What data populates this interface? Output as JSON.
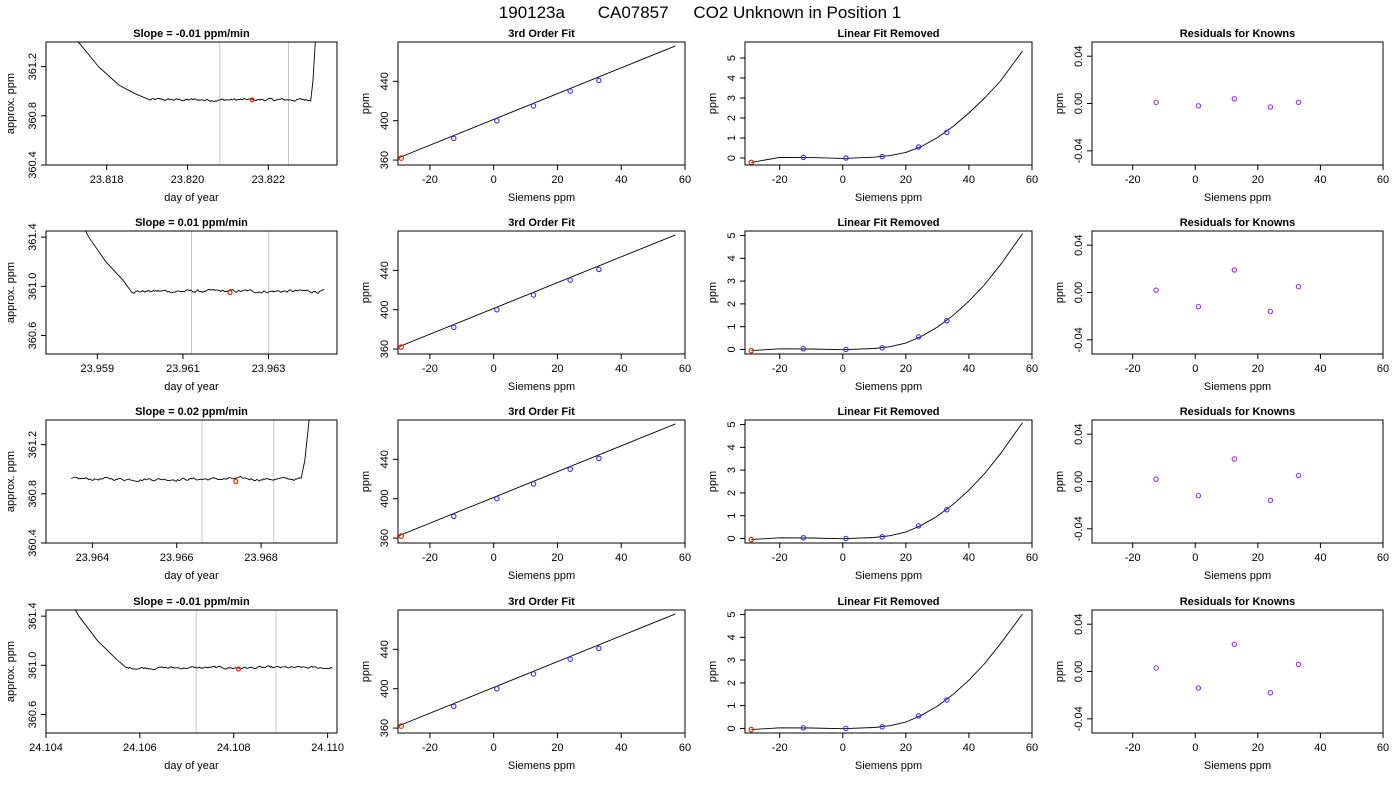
{
  "page": {
    "title_parts": [
      "190123a",
      "CA07857",
      "CO2 Unknown in Position  1"
    ]
  },
  "labels": {
    "fit_title": "3rd Order Fit",
    "lin_title": "Linear Fit Removed",
    "res_title": "Residuals for Knowns",
    "xlabel_time": "day of year",
    "ylabel_time": "approx. ppm",
    "xlabel_siemens": "Siemens ppm",
    "ylabel_ppm": "ppm"
  },
  "colors": {
    "line": "#000000",
    "vline": "#c8c8c8",
    "known_point": "#3333ff",
    "unknown_point": "#ff2200",
    "residual_point": "#9933ff"
  },
  "chart_data": [
    {
      "type": "line",
      "title": "Slope =  -0.01  ppm/min",
      "xlabel": "day of year",
      "ylabel": "approx. ppm",
      "xlim": [
        23.8165,
        23.8237
      ],
      "ylim": [
        360.4,
        361.4
      ],
      "xticks": [
        23.818,
        23.82,
        23.822
      ],
      "xtick_labels": [
        "23.818",
        "23.820",
        "23.822"
      ],
      "yticks": [
        360.4,
        360.8,
        361.2
      ],
      "ytick_labels": [
        "360.4",
        "360.8",
        "361.2"
      ],
      "x_range": [
        23.817,
        23.8232
      ],
      "trace": [
        [
          23.817,
          361.6
        ],
        [
          23.8173,
          361.4
        ],
        [
          23.8178,
          361.2
        ],
        [
          23.8183,
          361.05
        ],
        [
          23.8187,
          360.98
        ],
        [
          23.8192,
          360.93
        ],
        [
          23.8232,
          360.93
        ]
      ],
      "start": 23.81905,
      "baseline": 360.93,
      "noise": 0.01,
      "spike_start": 23.82305,
      "spike_end": 23.8232,
      "spike_top": 361.6,
      "vlines": [
        23.8208,
        23.8225
      ],
      "point": [
        23.8216,
        360.93
      ]
    },
    {
      "type": "scatter",
      "title": "3rd Order Fit",
      "xlabel": "Siemens ppm",
      "ylabel": "ppm",
      "xlim": [
        -30,
        60
      ],
      "ylim": [
        355,
        480
      ],
      "xticks": [
        -20,
        0,
        20,
        40,
        60
      ],
      "xtick_labels": [
        "-20",
        "0",
        "20",
        "40",
        "60"
      ],
      "yticks": [
        360,
        400,
        440
      ],
      "ytick_labels": [
        "360",
        "400",
        "440"
      ],
      "curve": [
        [
          -30,
          362
        ],
        [
          57,
          476
        ]
      ],
      "points": [
        [
          -12.5,
          382
        ],
        [
          1,
          400
        ],
        [
          12.5,
          415
        ],
        [
          24,
          430
        ],
        [
          33,
          441
        ]
      ],
      "unknown": [
        [
          -29,
          362
        ]
      ]
    },
    {
      "type": "scatter",
      "title": "Linear Fit Removed",
      "xlabel": "Siemens ppm",
      "ylabel": "ppm",
      "xlim": [
        -31,
        60
      ],
      "ylim": [
        -0.35,
        5.8
      ],
      "xticks": [
        -20,
        0,
        20,
        40,
        60
      ],
      "xtick_labels": [
        "-20",
        "0",
        "20",
        "40",
        "60"
      ],
      "yticks": [
        0,
        1,
        2,
        3,
        4,
        5
      ],
      "ytick_labels": [
        "0",
        "1",
        "2",
        "3",
        "4",
        "5"
      ],
      "curve": [
        [
          -29,
          -0.22
        ],
        [
          -20,
          0.03
        ],
        [
          -10,
          0.02
        ],
        [
          0,
          -0.02
        ],
        [
          10,
          0.04
        ],
        [
          15,
          0.12
        ],
        [
          20,
          0.28
        ],
        [
          25,
          0.58
        ],
        [
          30,
          1.02
        ],
        [
          35,
          1.58
        ],
        [
          40,
          2.25
        ],
        [
          45,
          3.0
        ],
        [
          50,
          3.85
        ],
        [
          57,
          5.35
        ]
      ],
      "points": [
        [
          -12.5,
          0.03
        ],
        [
          1,
          0.0
        ],
        [
          12.5,
          0.07
        ],
        [
          24,
          0.55
        ],
        [
          33,
          1.28
        ]
      ],
      "unknown": [
        [
          -29,
          -0.22
        ]
      ]
    },
    {
      "type": "scatter",
      "title": "Residuals for Knowns",
      "xlabel": "Siemens ppm",
      "ylabel": "ppm",
      "xlim": [
        -33,
        60
      ],
      "ylim": [
        -0.052,
        0.052
      ],
      "xticks": [
        -20,
        0,
        20,
        40,
        60
      ],
      "xtick_labels": [
        "-20",
        "0",
        "20",
        "40",
        "60"
      ],
      "yticks": [
        -0.04,
        0.0,
        0.04
      ],
      "ytick_labels": [
        "-0.04",
        "0.00",
        "0.04"
      ],
      "points": [
        [
          -12.5,
          0.001
        ],
        [
          1,
          -0.002
        ],
        [
          12.5,
          0.004
        ],
        [
          24,
          -0.003
        ],
        [
          33,
          0.001
        ]
      ]
    },
    {
      "type": "line",
      "title": "Slope =  0.01  ppm/min",
      "xlabel": "day of year",
      "ylabel": "approx. ppm",
      "xlim": [
        23.9578,
        23.9646
      ],
      "ylim": [
        360.45,
        361.45
      ],
      "xticks": [
        23.959,
        23.961,
        23.963
      ],
      "xtick_labels": [
        "23.959",
        "23.961",
        "23.963"
      ],
      "yticks": [
        360.6,
        361.0,
        361.4
      ],
      "ytick_labels": [
        "360.6",
        "361.0",
        "361.4"
      ],
      "x_range": [
        23.9585,
        23.9643
      ],
      "trace": [
        [
          23.9585,
          361.6
        ],
        [
          23.9588,
          361.4
        ],
        [
          23.9592,
          361.2
        ],
        [
          23.9596,
          361.05
        ],
        [
          23.9599,
          360.98
        ],
        [
          23.9643,
          360.96
        ]
      ],
      "start": 23.9598,
      "baseline": 360.96,
      "noise": 0.012,
      "vlines": [
        23.9612,
        23.963
      ],
      "point": [
        23.9621,
        360.95
      ]
    },
    {
      "type": "scatter",
      "title": "3rd Order Fit",
      "xlabel": "Siemens ppm",
      "ylabel": "ppm",
      "xlim": [
        -30,
        60
      ],
      "ylim": [
        355,
        480
      ],
      "xticks": [
        -20,
        0,
        20,
        40,
        60
      ],
      "xtick_labels": [
        "-20",
        "0",
        "20",
        "40",
        "60"
      ],
      "yticks": [
        360,
        400,
        440
      ],
      "ytick_labels": [
        "360",
        "400",
        "440"
      ],
      "curve": [
        [
          -30,
          362
        ],
        [
          57,
          476
        ]
      ],
      "points": [
        [
          -12.5,
          382
        ],
        [
          1,
          400
        ],
        [
          12.5,
          415
        ],
        [
          24,
          430
        ],
        [
          33,
          441
        ]
      ],
      "unknown": [
        [
          -29,
          362
        ]
      ]
    },
    {
      "type": "scatter",
      "title": "Linear Fit Removed",
      "xlabel": "Siemens ppm",
      "ylabel": "ppm",
      "xlim": [
        -31,
        60
      ],
      "ylim": [
        -0.2,
        5.2
      ],
      "xticks": [
        -20,
        0,
        20,
        40,
        60
      ],
      "xtick_labels": [
        "-20",
        "0",
        "20",
        "40",
        "60"
      ],
      "yticks": [
        0,
        1,
        2,
        3,
        4,
        5
      ],
      "ytick_labels": [
        "0",
        "1",
        "2",
        "3",
        "4",
        "5"
      ],
      "curve": [
        [
          -29,
          -0.05
        ],
        [
          -20,
          0.03
        ],
        [
          -10,
          0.02
        ],
        [
          0,
          -0.01
        ],
        [
          10,
          0.04
        ],
        [
          15,
          0.12
        ],
        [
          20,
          0.28
        ],
        [
          25,
          0.58
        ],
        [
          30,
          0.98
        ],
        [
          35,
          1.5
        ],
        [
          40,
          2.12
        ],
        [
          45,
          2.85
        ],
        [
          50,
          3.72
        ],
        [
          57,
          5.08
        ]
      ],
      "points": [
        [
          -12.5,
          0.03
        ],
        [
          1,
          0.0
        ],
        [
          12.5,
          0.07
        ],
        [
          24,
          0.55
        ],
        [
          33,
          1.26
        ]
      ],
      "unknown": [
        [
          -29,
          -0.05
        ]
      ]
    },
    {
      "type": "scatter",
      "title": "Residuals for Knowns",
      "xlabel": "Siemens ppm",
      "ylabel": "ppm",
      "xlim": [
        -33,
        60
      ],
      "ylim": [
        -0.052,
        0.052
      ],
      "xticks": [
        -20,
        0,
        20,
        40,
        60
      ],
      "xtick_labels": [
        "-20",
        "0",
        "20",
        "40",
        "60"
      ],
      "yticks": [
        -0.04,
        0.0,
        0.04
      ],
      "ytick_labels": [
        "-0.04",
        "0.00",
        "0.04"
      ],
      "points": [
        [
          -12.5,
          0.002
        ],
        [
          1,
          -0.012
        ],
        [
          12.5,
          0.019
        ],
        [
          24,
          -0.016
        ],
        [
          33,
          0.005
        ]
      ]
    },
    {
      "type": "line",
      "title": "Slope =  0.02  ppm/min",
      "xlabel": "day of year",
      "ylabel": "approx. ppm",
      "xlim": [
        23.9629,
        23.9698
      ],
      "ylim": [
        360.4,
        361.4
      ],
      "xticks": [
        23.964,
        23.966,
        23.968
      ],
      "xtick_labels": [
        "23.964",
        "23.966",
        "23.968"
      ],
      "yticks": [
        360.4,
        360.8,
        361.2
      ],
      "ytick_labels": [
        "360.4",
        "360.8",
        "361.2"
      ],
      "x_range": [
        23.9635,
        23.9692
      ],
      "trace": [
        [
          23.9635,
          360.92
        ],
        [
          23.9689,
          360.92
        ]
      ],
      "start": 23.9635,
      "baseline": 360.92,
      "noise": 0.012,
      "spike_start": 23.96895,
      "spike_end": 23.9692,
      "spike_top": 361.6,
      "vlines": [
        23.9666,
        23.9683
      ],
      "point": [
        23.9674,
        360.9
      ]
    },
    {
      "type": "scatter",
      "title": "3rd Order Fit",
      "xlabel": "Siemens ppm",
      "ylabel": "ppm",
      "xlim": [
        -30,
        60
      ],
      "ylim": [
        355,
        480
      ],
      "xticks": [
        -20,
        0,
        20,
        40,
        60
      ],
      "xtick_labels": [
        "-20",
        "0",
        "20",
        "40",
        "60"
      ],
      "yticks": [
        360,
        400,
        440
      ],
      "ytick_labels": [
        "360",
        "400",
        "440"
      ],
      "curve": [
        [
          -30,
          362
        ],
        [
          57,
          476
        ]
      ],
      "points": [
        [
          -12.5,
          382
        ],
        [
          1,
          400
        ],
        [
          12.5,
          415
        ],
        [
          24,
          430
        ],
        [
          33,
          441
        ]
      ],
      "unknown": [
        [
          -29,
          362
        ]
      ]
    },
    {
      "type": "scatter",
      "title": "Linear Fit Removed",
      "xlabel": "Siemens ppm",
      "ylabel": "ppm",
      "xlim": [
        -31,
        60
      ],
      "ylim": [
        -0.2,
        5.2
      ],
      "xticks": [
        -20,
        0,
        20,
        40,
        60
      ],
      "xtick_labels": [
        "-20",
        "0",
        "20",
        "40",
        "60"
      ],
      "yticks": [
        0,
        1,
        2,
        3,
        4,
        5
      ],
      "ytick_labels": [
        "0",
        "1",
        "2",
        "3",
        "4",
        "5"
      ],
      "curve": [
        [
          -29,
          -0.05
        ],
        [
          -20,
          0.03
        ],
        [
          -10,
          0.02
        ],
        [
          0,
          -0.01
        ],
        [
          10,
          0.04
        ],
        [
          15,
          0.12
        ],
        [
          20,
          0.28
        ],
        [
          25,
          0.58
        ],
        [
          30,
          0.98
        ],
        [
          35,
          1.5
        ],
        [
          40,
          2.12
        ],
        [
          45,
          2.85
        ],
        [
          50,
          3.72
        ],
        [
          57,
          5.08
        ]
      ],
      "points": [
        [
          -12.5,
          0.03
        ],
        [
          1,
          0.0
        ],
        [
          12.5,
          0.07
        ],
        [
          24,
          0.55
        ],
        [
          33,
          1.26
        ]
      ],
      "unknown": [
        [
          -29,
          -0.05
        ]
      ]
    },
    {
      "type": "scatter",
      "title": "Residuals for Knowns",
      "xlabel": "Siemens ppm",
      "ylabel": "ppm",
      "xlim": [
        -33,
        60
      ],
      "ylim": [
        -0.052,
        0.052
      ],
      "xticks": [
        -20,
        0,
        20,
        40,
        60
      ],
      "xtick_labels": [
        "-20",
        "0",
        "20",
        "40",
        "60"
      ],
      "yticks": [
        -0.04,
        0.0,
        0.04
      ],
      "ytick_labels": [
        "-0.04",
        "0.00",
        "0.04"
      ],
      "points": [
        [
          -12.5,
          0.002
        ],
        [
          1,
          -0.012
        ],
        [
          12.5,
          0.019
        ],
        [
          24,
          -0.016
        ],
        [
          33,
          0.005
        ]
      ]
    },
    {
      "type": "line",
      "title": "Slope =  -0.01  ppm/min",
      "xlabel": "day of year",
      "ylabel": "approx. ppm",
      "xlim": [
        23.104,
        23.1102
      ],
      "ylim": [
        360.45,
        361.45
      ],
      "xticks": [
        24.104,
        24.106,
        24.108,
        24.11
      ],
      "xtick_labels": [
        "24.104",
        "24.106",
        "24.108",
        "24.110"
      ],
      "xlim_real": [
        24.104,
        24.1102
      ],
      "x_range": [
        24.1044,
        24.1101
      ],
      "trace": [
        [
          24.1044,
          361.6
        ],
        [
          24.1047,
          361.4
        ],
        [
          24.1051,
          361.2
        ],
        [
          24.1055,
          361.05
        ],
        [
          24.1058,
          360.99
        ],
        [
          24.1101,
          360.98
        ]
      ],
      "start": 24.1057,
      "baseline": 360.98,
      "noise": 0.01,
      "vlines": [
        24.1072,
        24.1089
      ],
      "point": [
        24.1081,
        360.97
      ],
      "yticks": [
        360.6,
        361.0,
        361.4
      ],
      "ytick_labels": [
        "360.6",
        "361.0",
        "361.4"
      ]
    },
    {
      "type": "scatter",
      "title": "3rd Order Fit",
      "xlabel": "Siemens ppm",
      "ylabel": "ppm",
      "xlim": [
        -30,
        60
      ],
      "ylim": [
        355,
        480
      ],
      "xticks": [
        -20,
        0,
        20,
        40,
        60
      ],
      "xtick_labels": [
        "-20",
        "0",
        "20",
        "40",
        "60"
      ],
      "yticks": [
        360,
        400,
        440
      ],
      "ytick_labels": [
        "360",
        "400",
        "440"
      ],
      "curve": [
        [
          -30,
          362
        ],
        [
          57,
          476
        ]
      ],
      "points": [
        [
          -12.5,
          382
        ],
        [
          1,
          400
        ],
        [
          12.5,
          415
        ],
        [
          24,
          430
        ],
        [
          33,
          441
        ]
      ],
      "unknown": [
        [
          -29,
          362
        ]
      ]
    },
    {
      "type": "scatter",
      "title": "Linear Fit Removed",
      "xlabel": "Siemens ppm",
      "ylabel": "ppm",
      "xlim": [
        -31,
        60
      ],
      "ylim": [
        -0.2,
        5.2
      ],
      "xticks": [
        -20,
        0,
        20,
        40,
        60
      ],
      "xtick_labels": [
        "-20",
        "0",
        "20",
        "40",
        "60"
      ],
      "yticks": [
        0,
        1,
        2,
        3,
        4,
        5
      ],
      "ytick_labels": [
        "0",
        "1",
        "2",
        "3",
        "4",
        "5"
      ],
      "curve": [
        [
          -29,
          -0.05
        ],
        [
          -20,
          0.03
        ],
        [
          -10,
          0.02
        ],
        [
          0,
          -0.01
        ],
        [
          10,
          0.04
        ],
        [
          15,
          0.12
        ],
        [
          20,
          0.28
        ],
        [
          25,
          0.58
        ],
        [
          30,
          0.98
        ],
        [
          35,
          1.5
        ],
        [
          40,
          2.12
        ],
        [
          45,
          2.85
        ],
        [
          50,
          3.72
        ],
        [
          57,
          5.02
        ]
      ],
      "points": [
        [
          -12.5,
          0.03
        ],
        [
          1,
          0.0
        ],
        [
          12.5,
          0.07
        ],
        [
          24,
          0.55
        ],
        [
          33,
          1.25
        ]
      ],
      "unknown": [
        [
          -29,
          -0.05
        ]
      ]
    },
    {
      "type": "scatter",
      "title": "Residuals for Knowns",
      "xlabel": "Siemens ppm",
      "ylabel": "ppm",
      "xlim": [
        -33,
        60
      ],
      "ylim": [
        -0.052,
        0.052
      ],
      "xticks": [
        -20,
        0,
        20,
        40,
        60
      ],
      "xtick_labels": [
        "-20",
        "0",
        "20",
        "40",
        "60"
      ],
      "yticks": [
        -0.04,
        0.0,
        0.04
      ],
      "ytick_labels": [
        "-0.04",
        "0.00",
        "0.04"
      ],
      "points": [
        [
          -12.5,
          0.003
        ],
        [
          1,
          -0.014
        ],
        [
          12.5,
          0.023
        ],
        [
          24,
          -0.018
        ],
        [
          33,
          0.006
        ]
      ]
    }
  ]
}
